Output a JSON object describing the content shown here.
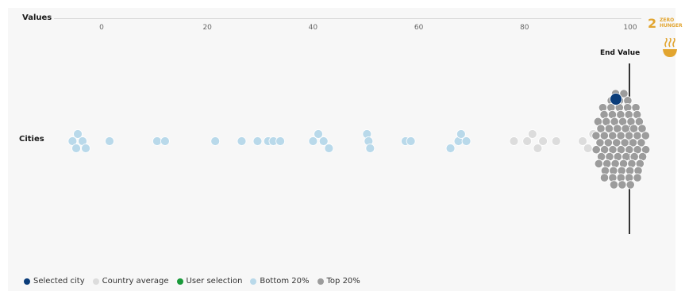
{
  "labels": {
    "values": "Values",
    "cities": "Cities",
    "end_value": "End Value"
  },
  "badge": {
    "number": "2",
    "line1": "ZERO",
    "line2": "HUNGER",
    "color": "#e2a530",
    "icon": "steaming-bowl-icon"
  },
  "legend": [
    {
      "label": "Selected city",
      "color": "#0b3d7a"
    },
    {
      "label": "Country average",
      "color": "#dcdcdc"
    },
    {
      "label": "User selection",
      "color": "#1a9a3b"
    },
    {
      "label": "Bottom 20%",
      "color": "#b9d9ea"
    },
    {
      "label": "Top 20%",
      "color": "#9c9c9c"
    }
  ],
  "chart_data": {
    "type": "scatter",
    "xlabel": "Values",
    "ylabel": "Cities",
    "xlim": [
      -10,
      100
    ],
    "ticks": [
      0,
      20,
      40,
      60,
      80,
      100
    ],
    "end_value": 100,
    "series": [
      {
        "name": "Bottom 20%",
        "color": "#b9d9ea",
        "x": [
          -5.5,
          -4.5,
          -4.8,
          -3.6,
          -3.0,
          1.5,
          10.5,
          12.0,
          21.5,
          26.5,
          29.5,
          31.5,
          32.5,
          33.8,
          40.0,
          41.0,
          42.0,
          43.0,
          50.2,
          50.5,
          50.8,
          57.5,
          58.5,
          66.0,
          67.5,
          68.0,
          69.0
        ],
        "y": [
          0,
          -1,
          1,
          0,
          1,
          0,
          0,
          0,
          0,
          0,
          0,
          0,
          0,
          0,
          0,
          -1,
          0,
          1,
          -1,
          0,
          1,
          0,
          0,
          1,
          0,
          -1,
          0
        ]
      },
      {
        "name": "Country average",
        "color": "#dcdcdc",
        "x": [
          78.0,
          80.5,
          81.5,
          82.5,
          83.5,
          86.0,
          91.0,
          92.0,
          93.0
        ],
        "y": [
          0,
          0,
          -1,
          1,
          0,
          0,
          0,
          1,
          -1
        ]
      },
      {
        "name": "Top 20%",
        "color": "#9c9c9c",
        "cluster_x_range": [
          92,
          104
        ],
        "count": 165
      },
      {
        "name": "Selected city",
        "color": "#0b3d7a",
        "x": [
          97.3
        ],
        "y": [
          5
        ]
      }
    ]
  }
}
